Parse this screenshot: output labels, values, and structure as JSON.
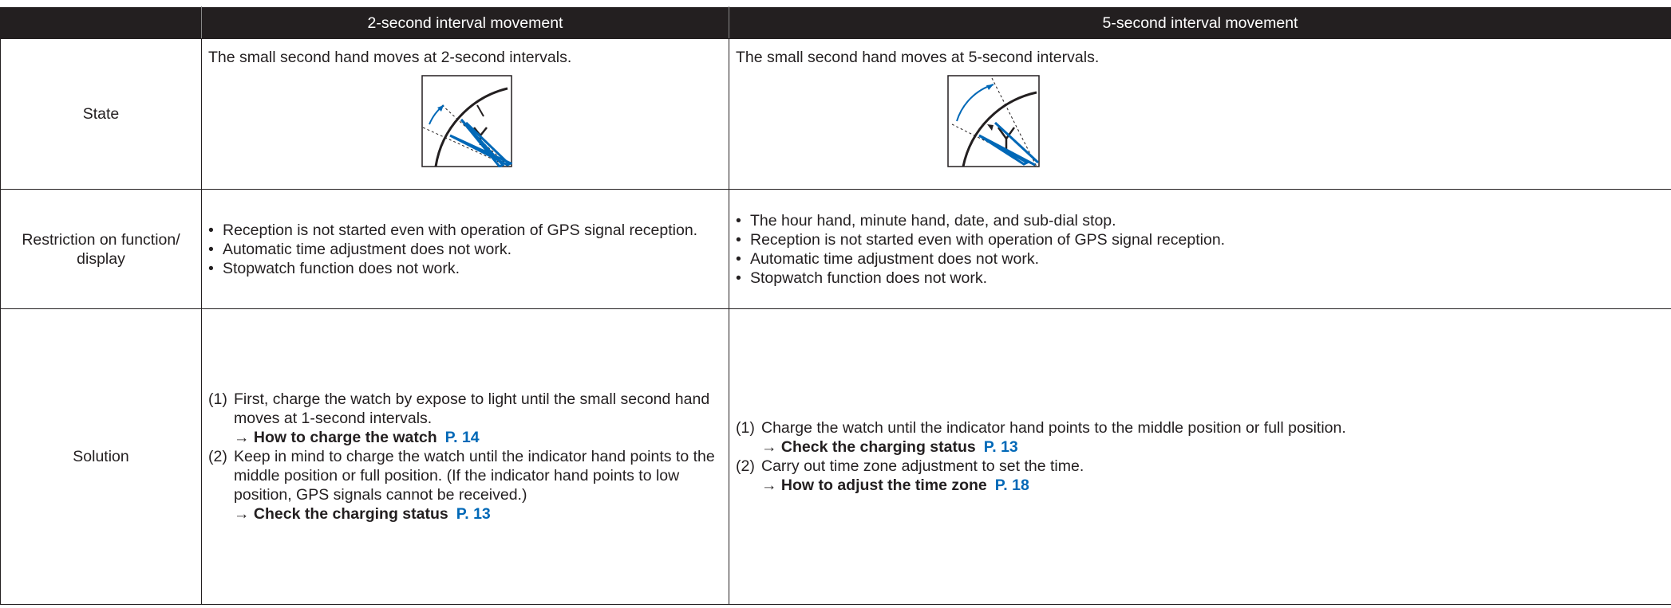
{
  "table": {
    "columns": [
      "2-second interval movement",
      "5-second interval movement"
    ],
    "rows": [
      {
        "label": "State",
        "cells": [
          {
            "text": "The small second hand moves at 2-second intervals."
          },
          {
            "text": "The small second hand moves at 5-second intervals."
          }
        ]
      },
      {
        "label": "Restriction on function/ display",
        "cells": [
          {
            "bullets": [
              "Reception is not started even with operation of GPS signal reception.",
              "Automatic time adjustment does not work.",
              "Stopwatch function does not work."
            ]
          },
          {
            "bullets": [
              "The hour hand, minute hand, date, and sub-dial stop.",
              "Reception is not started even with operation of GPS signal reception.",
              "Automatic time adjustment does not work.",
              "Stopwatch function does not work."
            ]
          }
        ]
      },
      {
        "label": "Solution",
        "cells": [
          {
            "steps": [
              {
                "number": "(1)",
                "text": "First, charge the watch by expose to light until the small second hand moves at 1-second intervals.",
                "link": {
                  "arrow": "→",
                  "text": "How to charge the watch",
                  "page": "P. 14"
                }
              },
              {
                "number": "(2)",
                "text": "Keep in mind to charge the watch until the indicator hand points to the middle position or full position. (If the indicator hand points to low position, GPS signals cannot be received.)",
                "link": {
                  "arrow": "→",
                  "text": "Check the charging status",
                  "page": "P. 13"
                }
              }
            ]
          },
          {
            "steps": [
              {
                "number": "(1)",
                "text": "Charge the watch until the indicator hand points to the middle position or full position.",
                "link": {
                  "arrow": "→",
                  "text": "Check the charging status",
                  "page": "P. 13"
                }
              },
              {
                "number": "(2)",
                "text": "Carry out time zone adjustment to set the time.",
                "link": {
                  "arrow": "→",
                  "text": "How to adjust the time zone",
                  "page": "P. 18"
                }
              }
            ]
          }
        ]
      }
    ]
  }
}
